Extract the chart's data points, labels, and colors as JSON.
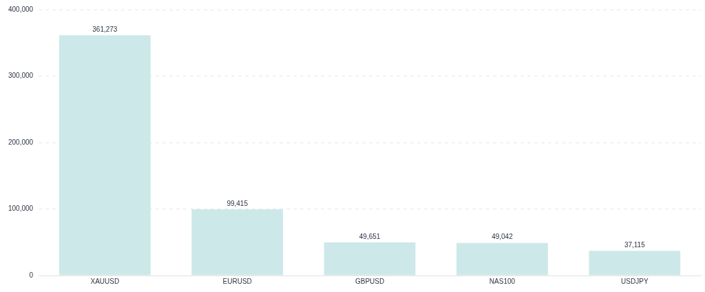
{
  "chart_data": {
    "type": "bar",
    "categories": [
      "XAUUSD",
      "EURUSD",
      "GBPUSD",
      "NAS100",
      "USDJPY"
    ],
    "values": [
      361273,
      99415,
      49651,
      49042,
      37115
    ],
    "color": "#cde8e8",
    "ylim": [
      0,
      400000
    ],
    "yticks": [
      {
        "value": 0,
        "label": "0"
      },
      {
        "value": 100000,
        "label": "100,000"
      },
      {
        "value": 200000,
        "label": "200,000"
      },
      {
        "value": 300000,
        "label": "300,000"
      },
      {
        "value": 400000,
        "label": "400,000"
      }
    ],
    "value_labels": [
      "361,273",
      "99,415",
      "49,651",
      "49,042",
      "37,115"
    ],
    "grid": "y",
    "legend": false
  }
}
